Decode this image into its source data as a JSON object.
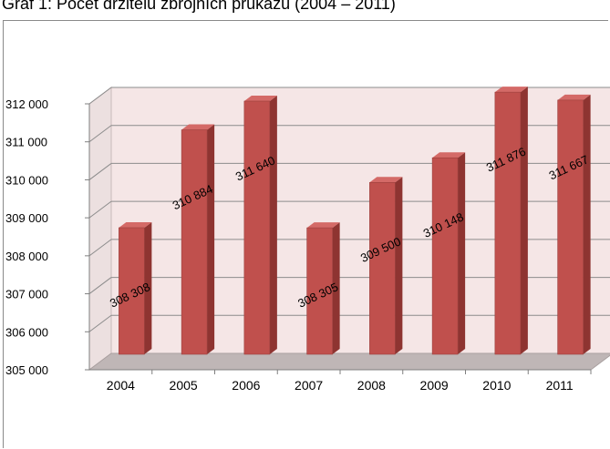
{
  "title": "Graf 1: Počet držitelů zbrojních průkazů (2004 – 2011)",
  "chart_data": {
    "type": "bar",
    "categories": [
      "2004",
      "2005",
      "2006",
      "2007",
      "2008",
      "2009",
      "2010",
      "2011"
    ],
    "values": [
      308308,
      310884,
      311640,
      308305,
      309500,
      310148,
      311876,
      311667
    ],
    "data_labels": [
      "308 308",
      "310 884",
      "311 640",
      "308 305",
      "309 500",
      "310 148",
      "311 876",
      "311 667"
    ],
    "ylim": [
      305000,
      312000
    ],
    "yticks": [
      305000,
      306000,
      307000,
      308000,
      309000,
      310000,
      311000,
      312000
    ],
    "ytick_labels": [
      "305 000",
      "306 000",
      "307 000",
      "308 000",
      "309 000",
      "310 000",
      "311 000",
      "312 000"
    ],
    "grid": true,
    "style": "3d-column",
    "colors": {
      "bar_front": "#c0504d",
      "bar_side": "#8e3431",
      "bar_top": "#d46a67",
      "wall": "#f5e6e6",
      "floor": "#bfb6b6",
      "grid": "#8c8c8c"
    }
  }
}
